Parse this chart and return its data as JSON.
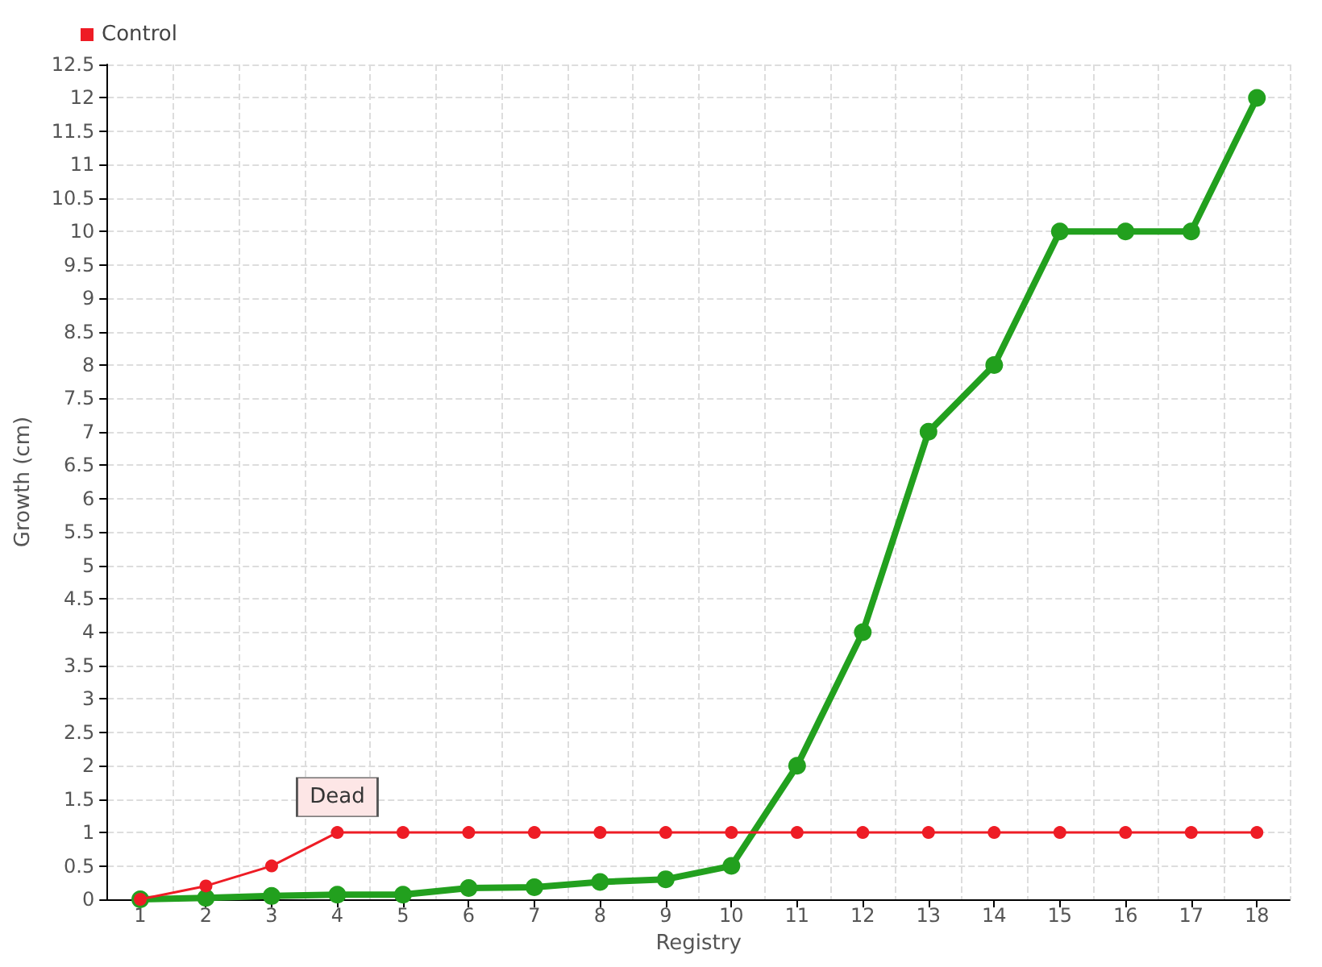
{
  "chart_data": {
    "type": "line",
    "xlabel": "Registry",
    "ylabel": "Growth (cm)",
    "categories": [
      "1",
      "2",
      "3",
      "4",
      "5",
      "6",
      "7",
      "8",
      "9",
      "10",
      "11",
      "12",
      "13",
      "14",
      "15",
      "16",
      "17",
      "18"
    ],
    "series": [
      {
        "color": "#22a01e",
        "values": [
          0,
          0.02,
          0.05,
          0.07,
          0.07,
          0.17,
          0.18,
          0.26,
          0.3,
          0.5,
          2,
          4,
          7,
          8,
          10,
          10,
          10,
          12
        ]
      },
      {
        "name": "Control",
        "color": "#ee1c25",
        "values": [
          0,
          0.2,
          0.5,
          1,
          1,
          1,
          1,
          1,
          1,
          1,
          1,
          1,
          1,
          1,
          1,
          1,
          1,
          1
        ]
      }
    ],
    "ylim": [
      0,
      12.5
    ],
    "yticks": [
      0,
      0.5,
      1,
      1.5,
      2,
      2.5,
      3,
      3.5,
      4,
      4.5,
      5,
      5.5,
      6,
      6.5,
      7,
      7.5,
      8,
      8.5,
      9,
      9.5,
      10,
      10.5,
      11,
      11.5,
      12,
      12.5
    ],
    "annotations": [
      {
        "text": "Dead",
        "x": "4",
        "y": 1
      }
    ],
    "grid": true,
    "legend": "top left",
    "marker": "circle"
  }
}
